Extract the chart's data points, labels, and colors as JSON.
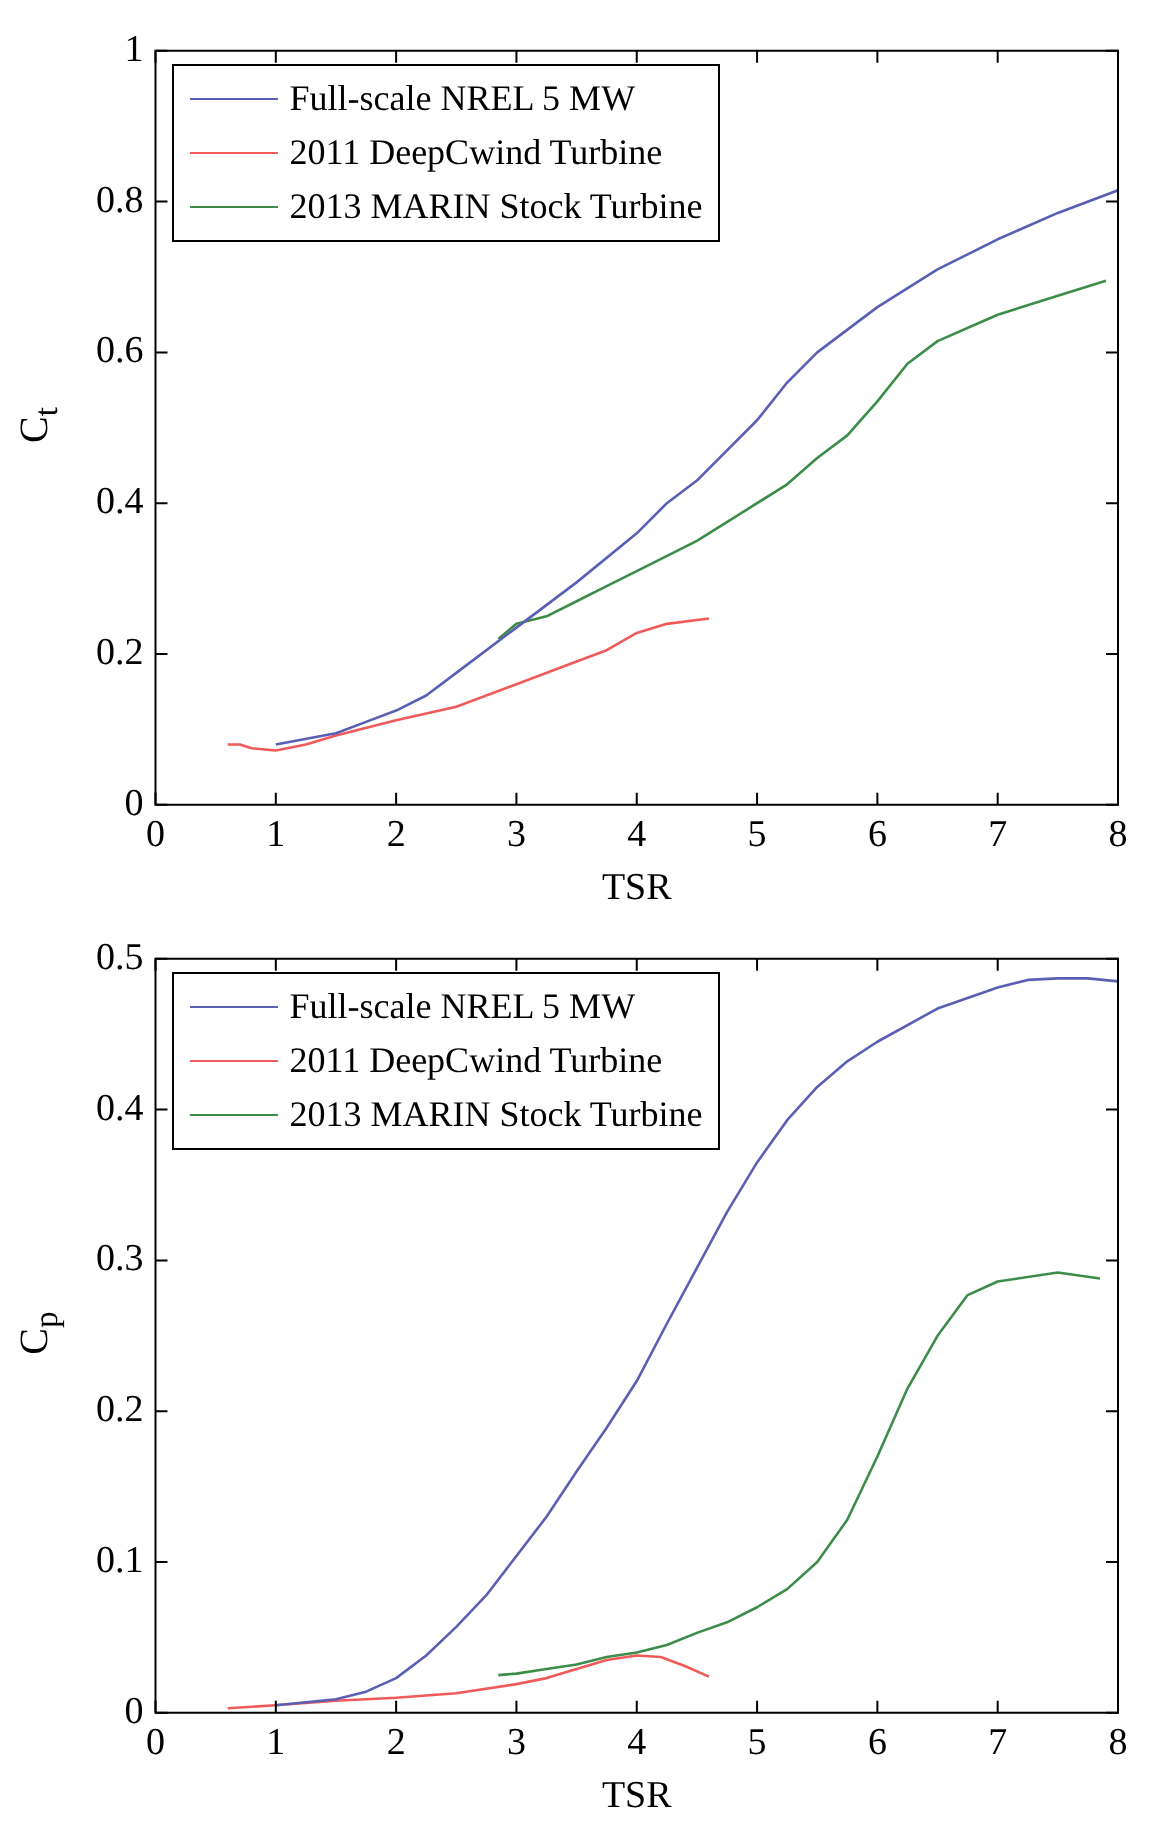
{
  "chart_data": [
    {
      "type": "line",
      "xlabel": "TSR",
      "ylabel": "C$_{t}$",
      "xlim": [
        0,
        8
      ],
      "xticks": [
        0,
        1,
        2,
        3,
        4,
        5,
        6,
        7,
        8
      ],
      "ylim": [
        0,
        1
      ],
      "yticks": [
        0,
        0.2,
        0.4,
        0.6,
        0.8,
        1
      ],
      "legend": "top left",
      "grid": false,
      "marker": "none",
      "line_style": "solid",
      "series": [
        {
          "name": "Full-scale NREL 5 MW",
          "color": "#5a5fb4",
          "x": [
            1,
            1.5,
            1.75,
            2,
            2.25,
            2.5,
            3,
            3.5,
            4,
            4.25,
            4.5,
            5,
            5.25,
            5.5,
            6,
            6.5,
            7,
            7.5,
            8
          ],
          "values": [
            0.08,
            0.095,
            0.11,
            0.125,
            0.145,
            0.175,
            0.235,
            0.295,
            0.36,
            0.4,
            0.43,
            0.51,
            0.56,
            0.6,
            0.66,
            0.71,
            0.75,
            0.785,
            0.815
          ]
        },
        {
          "name": "2011 DeepCwind Turbine",
          "color": "#f05a5a",
          "x": [
            0.6,
            0.7,
            0.8,
            1,
            1.25,
            1.5,
            2,
            2.5,
            3,
            3.5,
            3.75,
            4,
            4.25,
            4.6
          ],
          "values": [
            0.08,
            0.08,
            0.075,
            0.072,
            0.08,
            0.092,
            0.112,
            0.13,
            0.16,
            0.19,
            0.205,
            0.228,
            0.24,
            0.247
          ]
        },
        {
          "name": "2013 MARIN Stock Turbine",
          "color": "#3c8c4a",
          "x": [
            2.85,
            3,
            3.25,
            3.5,
            3.75,
            4,
            4.5,
            5,
            5.25,
            5.5,
            5.75,
            6,
            6.25,
            6.5,
            7,
            7.5,
            7.9
          ],
          "values": [
            0.22,
            0.24,
            0.25,
            0.27,
            0.29,
            0.31,
            0.35,
            0.4,
            0.425,
            0.46,
            0.49,
            0.535,
            0.585,
            0.615,
            0.65,
            0.675,
            0.695
          ]
        }
      ]
    },
    {
      "type": "line",
      "xlabel": "TSR",
      "ylabel": "C$_{p}$",
      "xlim": [
        0,
        8
      ],
      "xticks": [
        0,
        1,
        2,
        3,
        4,
        5,
        6,
        7,
        8
      ],
      "ylim": [
        0,
        0.5
      ],
      "yticks": [
        0,
        0.1,
        0.2,
        0.3,
        0.4,
        0.5
      ],
      "legend": "top left",
      "grid": false,
      "marker": "none",
      "line_style": "solid",
      "series": [
        {
          "name": "Full-scale NREL 5 MW",
          "color": "#5a5fb4",
          "x": [
            1,
            1.5,
            1.75,
            2,
            2.25,
            2.5,
            2.75,
            3,
            3.25,
            3.5,
            3.75,
            4,
            4.25,
            4.5,
            4.75,
            5,
            5.25,
            5.5,
            5.75,
            6,
            6.5,
            7,
            7.25,
            7.5,
            7.75,
            8
          ],
          "values": [
            0.005,
            0.009,
            0.014,
            0.023,
            0.038,
            0.057,
            0.078,
            0.104,
            0.13,
            0.16,
            0.189,
            0.22,
            0.258,
            0.295,
            0.332,
            0.365,
            0.393,
            0.415,
            0.432,
            0.445,
            0.467,
            0.481,
            0.486,
            0.487,
            0.487,
            0.485
          ]
        },
        {
          "name": "2011 DeepCwind Turbine",
          "color": "#f05a5a",
          "x": [
            0.6,
            1,
            1.5,
            2,
            2.5,
            3,
            3.25,
            3.5,
            3.75,
            4,
            4.2,
            4.4,
            4.6
          ],
          "values": [
            0.003,
            0.005,
            0.008,
            0.01,
            0.013,
            0.019,
            0.023,
            0.029,
            0.035,
            0.038,
            0.037,
            0.031,
            0.024
          ]
        },
        {
          "name": "2013 MARIN Stock Turbine",
          "color": "#3c8c4a",
          "x": [
            2.85,
            3,
            3.25,
            3.5,
            3.75,
            4,
            4.25,
            4.5,
            4.75,
            5,
            5.25,
            5.5,
            5.75,
            6,
            6.25,
            6.5,
            6.75,
            7,
            7.5,
            7.85
          ],
          "values": [
            0.025,
            0.026,
            0.029,
            0.032,
            0.037,
            0.04,
            0.045,
            0.053,
            0.06,
            0.07,
            0.082,
            0.1,
            0.128,
            0.17,
            0.215,
            0.25,
            0.277,
            0.286,
            0.292,
            0.288
          ]
        }
      ]
    }
  ]
}
